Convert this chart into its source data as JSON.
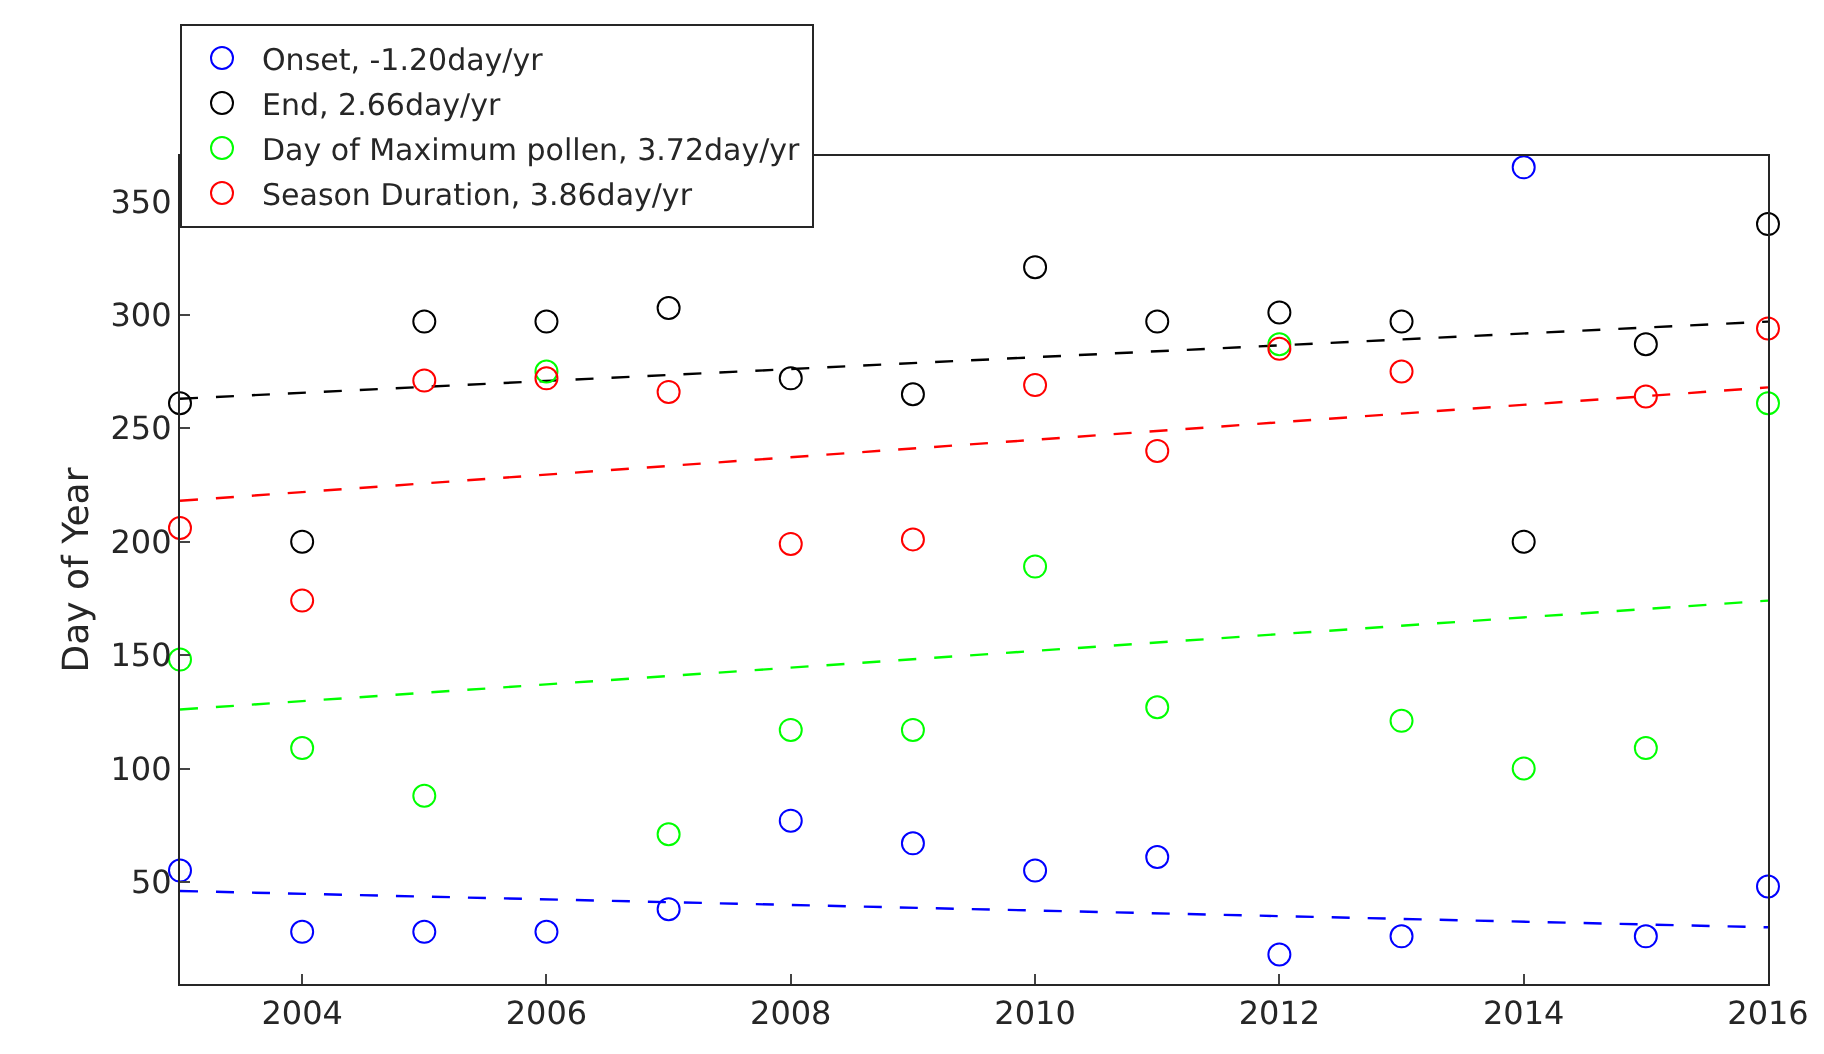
{
  "chart_data": {
    "type": "scatter",
    "ylabel": "Day of Year",
    "x": [
      2003,
      2004,
      2005,
      2006,
      2007,
      2008,
      2009,
      2010,
      2011,
      2012,
      2013,
      2014,
      2015,
      2016
    ],
    "xlim": [
      2003,
      2016
    ],
    "xticks": [
      2004,
      2006,
      2008,
      2010,
      2012,
      2014,
      2016
    ],
    "ylim": [
      5,
      370
    ],
    "yticks": [
      50,
      100,
      150,
      200,
      250,
      300,
      350
    ],
    "grid": false,
    "legend": "top left",
    "marker": "circle",
    "series": [
      {
        "name": "Onset, -1.20day/yr",
        "color": "#0000ff",
        "values": [
          55,
          28,
          28,
          28,
          38,
          77,
          67,
          55,
          61,
          18,
          26,
          365,
          26,
          48
        ]
      },
      {
        "name": "End, 2.66day/yr",
        "color": "#000000",
        "values": [
          261,
          200,
          297,
          297,
          303,
          272,
          265,
          321,
          297,
          301,
          297,
          200,
          287,
          340
        ]
      },
      {
        "name": "Day of Maximum pollen, 3.72day/yr",
        "color": "#00ff00",
        "values": [
          148,
          109,
          88,
          275,
          71,
          117,
          117,
          189,
          127,
          287,
          121,
          100,
          109,
          261
        ]
      },
      {
        "name": "Season Duration, 3.86day/yr",
        "color": "#ff0000",
        "values": [
          206,
          174,
          271,
          272,
          266,
          199,
          201,
          269,
          240,
          285,
          275,
          null,
          264,
          294
        ]
      },
      {
        "type": "line",
        "line_style": "dashed",
        "marker": "none",
        "color": "#0000ff",
        "values": [
          46,
          null,
          null,
          null,
          null,
          null,
          null,
          null,
          null,
          null,
          null,
          null,
          null,
          30
        ]
      },
      {
        "type": "line",
        "line_style": "dashed",
        "marker": "none",
        "color": "#000000",
        "values": [
          263,
          null,
          null,
          null,
          null,
          null,
          null,
          null,
          null,
          null,
          null,
          null,
          null,
          297
        ]
      },
      {
        "type": "line",
        "line_style": "dashed",
        "marker": "none",
        "color": "#00ff00",
        "values": [
          126,
          null,
          null,
          null,
          null,
          null,
          null,
          null,
          null,
          null,
          null,
          null,
          null,
          174
        ]
      },
      {
        "type": "line",
        "line_style": "dashed",
        "marker": "none",
        "color": "#ff0000",
        "values": [
          218,
          null,
          null,
          null,
          null,
          null,
          null,
          null,
          null,
          null,
          null,
          null,
          null,
          268
        ]
      }
    ]
  }
}
